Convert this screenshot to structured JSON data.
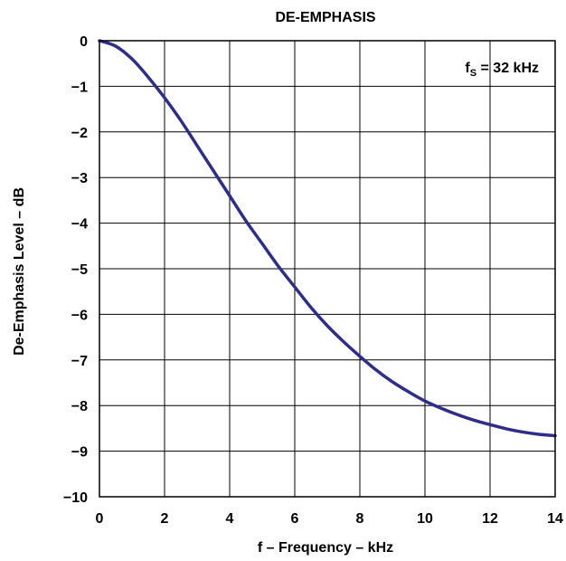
{
  "chart_data": {
    "type": "line",
    "title": "DE-EMPHASIS",
    "xlabel": "f – Frequency – kHz",
    "ylabel": "De-Emphasis Level – dB",
    "xlim": [
      0,
      14
    ],
    "ylim": [
      -10,
      0
    ],
    "x_ticks": [
      "0",
      "2",
      "4",
      "6",
      "8",
      "10",
      "12",
      "14"
    ],
    "y_ticks": [
      "0",
      "−1",
      "−2",
      "−3",
      "−4",
      "−5",
      "−6",
      "−7",
      "−8",
      "−9",
      "−10"
    ],
    "grid": true,
    "annotation": {
      "main": "f",
      "sub": "S",
      "tail": " = 32 kHz",
      "placement": "top-right"
    },
    "series": [
      {
        "color": "#2d2d8c",
        "x": [
          0,
          0.5,
          1,
          1.5,
          2,
          2.5,
          3,
          3.5,
          4,
          4.5,
          5,
          5.5,
          6,
          6.5,
          7,
          7.5,
          8,
          8.5,
          9,
          9.5,
          10,
          10.5,
          11,
          11.5,
          12,
          12.5,
          13,
          13.5,
          14
        ],
        "y": [
          0,
          -0.12,
          -0.4,
          -0.8,
          -1.25,
          -1.75,
          -2.3,
          -2.85,
          -3.4,
          -3.95,
          -4.45,
          -4.95,
          -5.4,
          -5.85,
          -6.25,
          -6.6,
          -6.92,
          -7.22,
          -7.48,
          -7.7,
          -7.9,
          -8.06,
          -8.2,
          -8.32,
          -8.42,
          -8.51,
          -8.58,
          -8.63,
          -8.66
        ]
      }
    ]
  }
}
